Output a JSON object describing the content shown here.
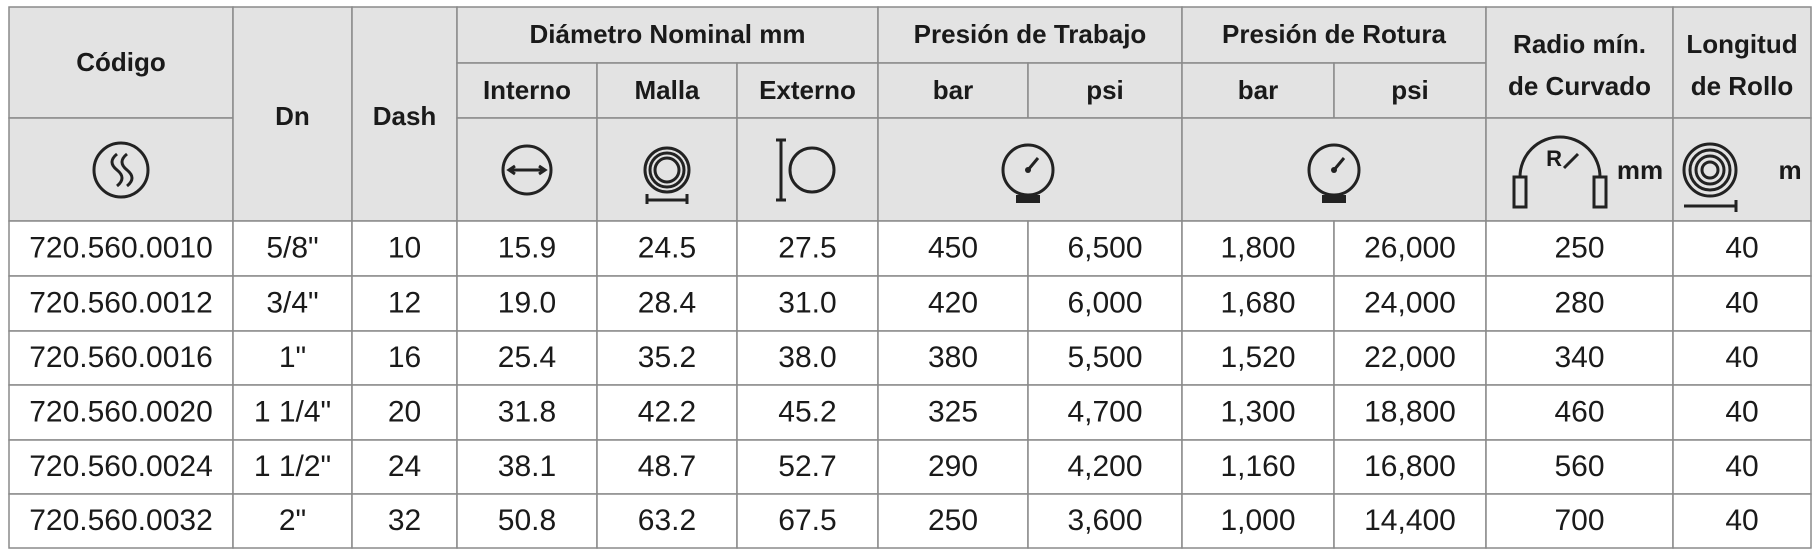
{
  "table": {
    "headers": {
      "codigo": "Código",
      "dn": "Dn",
      "dash": "Dash",
      "diametro": "Diámetro Nominal mm",
      "presion_trabajo": "Presión de Trabajo",
      "presion_rotura": "Presión de Rotura",
      "radio": [
        "Radio mín.",
        "de Curvado"
      ],
      "longitud": [
        "Longitud",
        "de Rollo"
      ]
    },
    "subheaders": [
      "Interno",
      "Malla",
      "Externo",
      "bar",
      "psi",
      "bar",
      "psi"
    ],
    "units": {
      "radio": "mm",
      "longitud": "m"
    },
    "rows": [
      [
        "720.560.0010",
        "5/8\"",
        "10",
        "15.9",
        "24.5",
        "27.5",
        "450",
        "6,500",
        "1,800",
        "26,000",
        "250",
        "40"
      ],
      [
        "720.560.0012",
        "3/4\"",
        "12",
        "19.0",
        "28.4",
        "31.0",
        "420",
        "6,000",
        "1,680",
        "24,000",
        "280",
        "40"
      ],
      [
        "720.560.0016",
        "1\"",
        "16",
        "25.4",
        "35.2",
        "38.0",
        "380",
        "5,500",
        "1,520",
        "22,000",
        "340",
        "40"
      ],
      [
        "720.560.0020",
        "1 1/4\"",
        "20",
        "31.8",
        "42.2",
        "45.2",
        "325",
        "4,700",
        "1,300",
        "18,800",
        "460",
        "40"
      ],
      [
        "720.560.0024",
        "1 1/2\"",
        "24",
        "38.1",
        "48.7",
        "52.7",
        "290",
        "4,200",
        "1,160",
        "16,800",
        "560",
        "40"
      ],
      [
        "720.560.0032",
        "2\"",
        "32",
        "50.8",
        "63.2",
        "67.5",
        "250",
        "3,600",
        "1,000",
        "14,400",
        "700",
        "40"
      ]
    ]
  }
}
